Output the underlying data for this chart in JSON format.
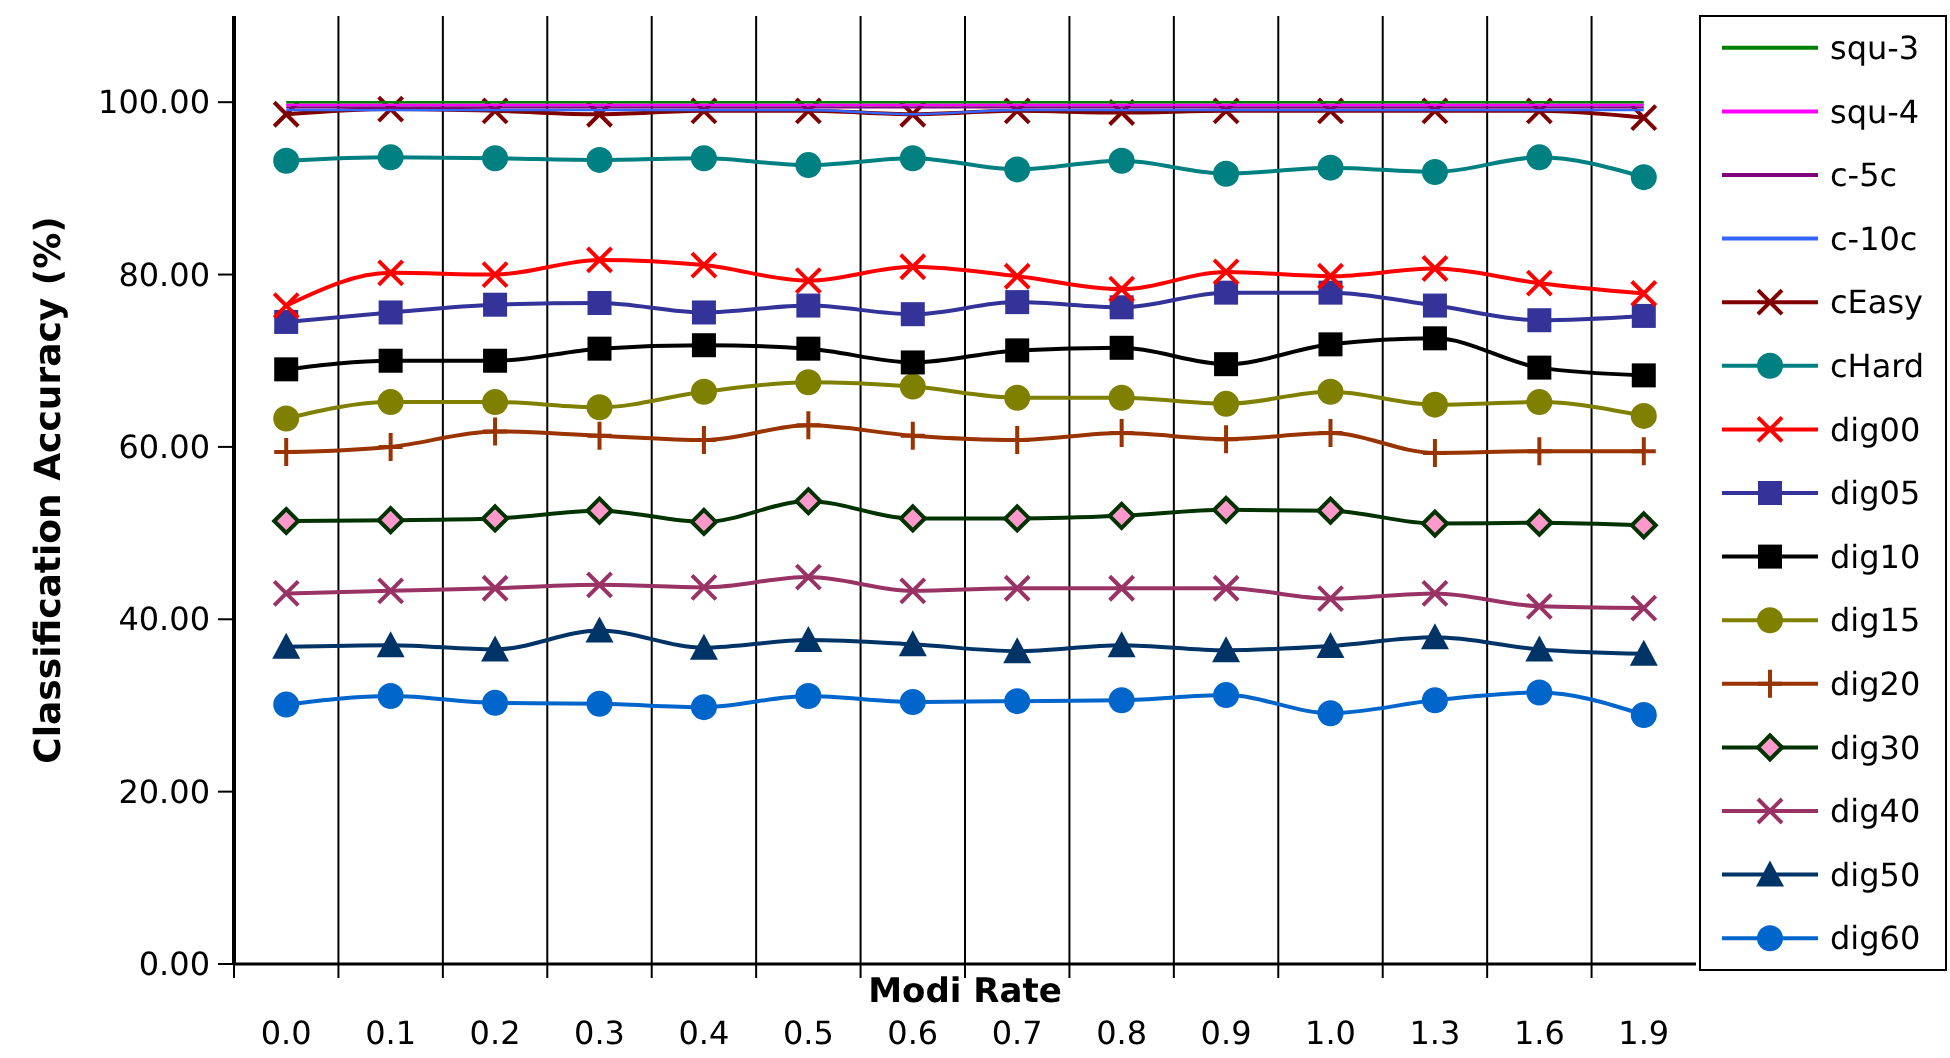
{
  "chart_data": {
    "type": "line",
    "xlabel": "Modi Rate",
    "ylabel": "Classification Accuracy (%)",
    "categories": [
      "0.0",
      "0.1",
      "0.2",
      "0.3",
      "0.4",
      "0.5",
      "0.6",
      "0.7",
      "0.8",
      "0.9",
      "1.0",
      "1.3",
      "1.6",
      "1.9"
    ],
    "ylim": [
      0,
      110
    ],
    "yticks": [
      {
        "value": 0,
        "label": "0.00"
      },
      {
        "value": 20,
        "label": "20.00"
      },
      {
        "value": 40,
        "label": "40.00"
      },
      {
        "value": 60,
        "label": "60.00"
      },
      {
        "value": 80,
        "label": "80.00"
      },
      {
        "value": 100,
        "label": "100.00"
      }
    ],
    "grid": "x",
    "legend": "right",
    "series": [
      {
        "name": "squ-3",
        "color": "#008000",
        "marker": "none",
        "values": [
          100.0,
          100.0,
          100.0,
          100.0,
          100.0,
          100.0,
          100.0,
          100.0,
          100.0,
          100.0,
          100.0,
          100.0,
          100.0,
          100.0
        ]
      },
      {
        "name": "squ-4",
        "color": "#ff00ff",
        "marker": "none",
        "values": [
          99.7,
          99.7,
          99.7,
          99.7,
          99.7,
          99.7,
          99.7,
          99.7,
          99.7,
          99.7,
          99.7,
          99.7,
          99.7,
          99.7
        ]
      },
      {
        "name": "c-5c",
        "color": "#800080",
        "marker": "none",
        "values": [
          99.4,
          99.4,
          99.4,
          99.4,
          99.4,
          99.4,
          99.4,
          99.4,
          99.4,
          99.4,
          99.4,
          99.4,
          99.4,
          99.4
        ]
      },
      {
        "name": "c-10c",
        "color": "#3366ff",
        "marker": "none",
        "values": [
          99.1,
          99.1,
          99.1,
          99.1,
          99.1,
          99.1,
          98.6,
          99.1,
          99.1,
          99.1,
          99.1,
          99.1,
          99.1,
          99.1
        ]
      },
      {
        "name": "cEasy",
        "color": "#800000",
        "marker": "cross",
        "values": [
          98.6,
          99.2,
          99.0,
          98.6,
          99.0,
          99.0,
          98.6,
          99.0,
          98.8,
          99.0,
          99.0,
          99.0,
          99.0,
          98.2
        ]
      },
      {
        "name": "cHard",
        "color": "#008080",
        "marker": "circle",
        "values": [
          93.2,
          93.6,
          93.5,
          93.3,
          93.5,
          92.7,
          93.5,
          92.2,
          93.2,
          91.7,
          92.4,
          91.9,
          93.6,
          91.3
        ]
      },
      {
        "name": "dig00",
        "color": "#ff0000",
        "marker": "cross",
        "values": [
          76.4,
          80.2,
          80.0,
          81.7,
          81.1,
          79.3,
          80.9,
          79.8,
          78.3,
          80.3,
          79.8,
          80.7,
          79.0,
          77.8
        ]
      },
      {
        "name": "dig05",
        "color": "#333399",
        "marker": "square",
        "values": [
          74.5,
          75.6,
          76.5,
          76.7,
          75.6,
          76.4,
          75.4,
          76.8,
          76.2,
          77.9,
          77.9,
          76.4,
          74.7,
          75.2
        ]
      },
      {
        "name": "dig10",
        "color": "#000000",
        "marker": "square",
        "values": [
          69.0,
          70.0,
          70.0,
          71.4,
          71.8,
          71.4,
          69.8,
          71.2,
          71.5,
          69.6,
          71.9,
          72.6,
          69.2,
          68.3
        ]
      },
      {
        "name": "dig15",
        "color": "#808000",
        "marker": "circle",
        "values": [
          63.3,
          65.2,
          65.2,
          64.6,
          66.4,
          67.5,
          67.0,
          65.7,
          65.7,
          65.0,
          66.4,
          64.9,
          65.2,
          63.6
        ]
      },
      {
        "name": "dig20",
        "color": "#993300",
        "marker": "plus",
        "values": [
          59.4,
          60.0,
          61.8,
          61.3,
          60.8,
          62.5,
          61.3,
          60.8,
          61.6,
          60.9,
          61.6,
          59.3,
          59.5,
          59.5
        ]
      },
      {
        "name": "dig30",
        "color": "#003300",
        "marker": "diamond",
        "values": [
          51.4,
          51.5,
          51.7,
          52.6,
          51.3,
          53.7,
          51.7,
          51.7,
          52.0,
          52.7,
          52.6,
          51.1,
          51.2,
          50.9
        ]
      },
      {
        "name": "dig40",
        "color": "#993366",
        "marker": "cross",
        "values": [
          43.0,
          43.3,
          43.6,
          44.0,
          43.7,
          44.9,
          43.3,
          43.6,
          43.6,
          43.6,
          42.4,
          43.0,
          41.5,
          41.3
        ]
      },
      {
        "name": "dig50",
        "color": "#003366",
        "marker": "triangle",
        "values": [
          36.8,
          37.0,
          36.5,
          38.7,
          36.7,
          37.6,
          37.1,
          36.3,
          37.0,
          36.4,
          36.9,
          37.9,
          36.5,
          36.0
        ]
      },
      {
        "name": "dig60",
        "color": "#0066cc",
        "marker": "circle",
        "values": [
          30.1,
          31.1,
          30.3,
          30.2,
          29.8,
          31.1,
          30.4,
          30.5,
          30.6,
          31.2,
          29.1,
          30.6,
          31.5,
          28.9
        ]
      }
    ]
  }
}
